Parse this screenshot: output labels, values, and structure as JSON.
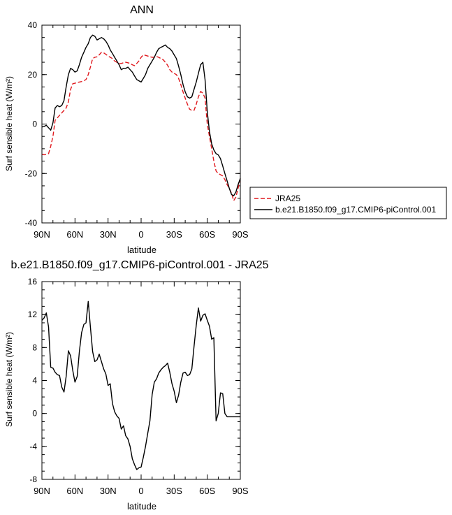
{
  "chart_data": [
    {
      "type": "line",
      "title": "ANN",
      "xlabel": "latitude",
      "ylabel": "Surf sensible heat (W/m²)",
      "x_tick_labels": [
        "90N",
        "60N",
        "30N",
        "0",
        "30S",
        "60S",
        "90S"
      ],
      "x_ticks": [
        90,
        60,
        30,
        0,
        -30,
        -60,
        -90
      ],
      "xlim": [
        90,
        -90
      ],
      "ylim": [
        -40,
        40
      ],
      "y_ticks": [
        -40,
        -20,
        0,
        20,
        40
      ],
      "grid": false,
      "legend": "right, outside",
      "x": [
        90,
        88,
        86,
        84,
        82,
        80,
        78,
        76,
        74,
        72,
        70,
        68,
        66,
        64,
        62,
        60,
        58,
        56,
        54,
        52,
        50,
        48,
        46,
        44,
        42,
        40,
        38,
        36,
        34,
        32,
        30,
        28,
        26,
        24,
        22,
        20,
        18,
        16,
        14,
        12,
        10,
        8,
        6,
        4,
        2,
        0,
        -2,
        -4,
        -6,
        -8,
        -10,
        -12,
        -14,
        -16,
        -18,
        -20,
        -22,
        -24,
        -26,
        -28,
        -30,
        -32,
        -34,
        -36,
        -38,
        -40,
        -42,
        -44,
        -46,
        -48,
        -50,
        -52,
        -54,
        -56,
        -58,
        -60,
        -62,
        -64,
        -66,
        -68,
        -70,
        -72,
        -74,
        -76,
        -78,
        -80,
        -82,
        -84,
        -86,
        -88,
        -90
      ],
      "series": [
        {
          "name": "JRA25",
          "color": "#e0191e",
          "dash": "dashed",
          "values": [
            -12.3,
            -12.4,
            -12.3,
            -12.0,
            -9.0,
            -5.0,
            1.5,
            2.5,
            3.5,
            4.5,
            5.5,
            6.5,
            9.0,
            14.0,
            16.3,
            16.5,
            16.8,
            17.0,
            17.2,
            17.5,
            18.0,
            20.0,
            23.0,
            26.5,
            27.0,
            27.2,
            28.0,
            29.0,
            28.8,
            28.2,
            27.5,
            27.0,
            26.5,
            25.5,
            25.0,
            24.5,
            24.5,
            24.8,
            25.0,
            24.8,
            24.5,
            24.0,
            23.6,
            24.5,
            25.5,
            27.0,
            28.0,
            27.8,
            27.5,
            27.2,
            27.0,
            27.0,
            27.3,
            27.0,
            26.5,
            26.0,
            25.0,
            23.8,
            22.0,
            21.0,
            20.5,
            20.0,
            18.5,
            16.0,
            13.0,
            10.5,
            8.0,
            6.0,
            5.5,
            5.5,
            8.0,
            11.0,
            13.2,
            12.5,
            10.5,
            0.0,
            -5.0,
            -10.0,
            -15.0,
            -19.0,
            -20.0,
            -20.5,
            -21.0,
            -22.5,
            -24.5,
            -26.0,
            -28.0,
            -31.0,
            -29.5,
            -26.0,
            -22.0
          ]
        },
        {
          "name": "b.e21.B1850.f09_g17.CMIP6-piControl.001",
          "color": "#000000",
          "dash": "solid",
          "values": [
            -1.2,
            -1.0,
            -0.5,
            -1.5,
            -2.5,
            0.5,
            6.5,
            7.5,
            7.0,
            7.5,
            9.5,
            15.0,
            20.0,
            22.5,
            22.0,
            21.0,
            21.5,
            24.0,
            27.0,
            29.0,
            31.0,
            32.5,
            35.0,
            36.0,
            35.5,
            34.0,
            34.5,
            35.0,
            34.5,
            33.5,
            32.0,
            30.0,
            28.5,
            27.0,
            25.5,
            24.0,
            22.0,
            22.5,
            22.5,
            23.0,
            22.0,
            21.0,
            19.5,
            18.0,
            17.5,
            17.0,
            18.5,
            20.0,
            22.5,
            24.0,
            25.5,
            27.0,
            29.0,
            30.5,
            31.0,
            31.5,
            32.0,
            31.0,
            30.5,
            29.5,
            28.0,
            26.5,
            23.5,
            20.0,
            16.0,
            13.0,
            11.0,
            10.5,
            11.0,
            14.0,
            17.0,
            20.5,
            24.0,
            25.0,
            18.0,
            5.0,
            -3.0,
            -8.0,
            -10.5,
            -12.0,
            -12.5,
            -14.0,
            -17.0,
            -20.0,
            -23.0,
            -26.0,
            -28.5,
            -29.0,
            -27.5,
            -24.5,
            -22.0
          ]
        }
      ]
    },
    {
      "type": "line",
      "title": "b.e21.B1850.f09_g17.CMIP6-piControl.001 - JRA25",
      "xlabel": "latitude",
      "ylabel": "Surf sensible heat (W/m²)",
      "x_tick_labels": [
        "90N",
        "60N",
        "30N",
        "0",
        "30S",
        "60S",
        "90S"
      ],
      "x_ticks": [
        90,
        60,
        30,
        0,
        -30,
        -60,
        -90
      ],
      "xlim": [
        90,
        -90
      ],
      "ylim": [
        -8,
        16
      ],
      "y_ticks": [
        -8,
        -4,
        0,
        4,
        8,
        12,
        16
      ],
      "grid": false,
      "x": [
        90,
        88,
        86,
        84,
        82,
        80,
        78,
        76,
        74,
        72,
        70,
        68,
        66,
        64,
        62,
        60,
        58,
        56,
        54,
        52,
        50,
        48,
        46,
        44,
        42,
        40,
        38,
        36,
        34,
        32,
        30,
        28,
        26,
        24,
        22,
        20,
        18,
        16,
        14,
        12,
        10,
        8,
        6,
        4,
        2,
        0,
        -2,
        -4,
        -6,
        -8,
        -10,
        -12,
        -14,
        -16,
        -18,
        -20,
        -22,
        -24,
        -26,
        -28,
        -30,
        -32,
        -34,
        -36,
        -38,
        -40,
        -42,
        -44,
        -46,
        -48,
        -50,
        -52,
        -54,
        -56,
        -58,
        -60,
        -62,
        -64,
        -66,
        -68,
        -70,
        -72,
        -74,
        -76,
        -78,
        -80,
        -82,
        -84,
        -86,
        -88,
        -90
      ],
      "series": [
        {
          "name": "",
          "color": "#000000",
          "dash": "solid",
          "values": [
            11.3,
            11.6,
            12.2,
            10.5,
            5.6,
            5.5,
            5.0,
            4.7,
            4.6,
            3.2,
            2.6,
            4.5,
            7.6,
            7.0,
            5.2,
            3.8,
            4.5,
            7.5,
            9.8,
            10.8,
            11.0,
            13.6,
            10.5,
            7.5,
            6.3,
            6.5,
            7.2,
            6.3,
            5.4,
            4.8,
            3.4,
            3.6,
            1.2,
            0.2,
            -0.3,
            -0.6,
            -1.9,
            -1.5,
            -2.7,
            -3.1,
            -4.0,
            -5.5,
            -6.2,
            -6.8,
            -6.6,
            -6.5,
            -5.3,
            -4.0,
            -2.4,
            -0.9,
            2.3,
            3.8,
            4.2,
            4.9,
            5.3,
            5.6,
            5.8,
            6.1,
            5.0,
            3.6,
            2.7,
            1.3,
            2.2,
            3.8,
            4.9,
            5.0,
            4.6,
            4.7,
            5.4,
            8.1,
            10.7,
            12.8,
            11.2,
            11.9,
            12.1,
            11.3,
            10.6,
            9.0,
            9.2,
            -0.9,
            0.0,
            2.5,
            2.4,
            0.0,
            -0.4,
            -0.4,
            -0.4,
            -0.4,
            -0.4,
            -0.4,
            -0.4
          ]
        }
      ]
    }
  ]
}
